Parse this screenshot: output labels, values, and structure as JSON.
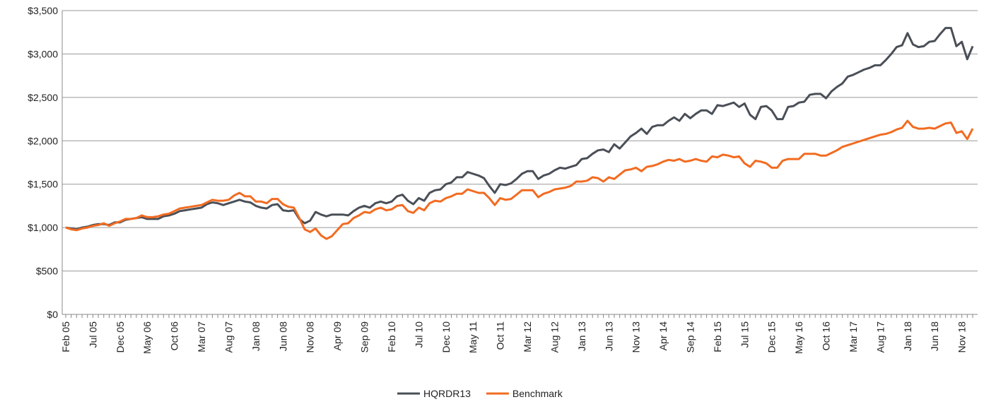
{
  "chart_data": {
    "type": "line",
    "categories": [
      "Feb 05",
      null,
      null,
      null,
      null,
      "Jul 05",
      null,
      null,
      null,
      null,
      "Dec 05",
      null,
      null,
      null,
      null,
      "May 06",
      null,
      null,
      null,
      null,
      "Oct 06",
      null,
      null,
      null,
      null,
      "Mar 07",
      null,
      null,
      null,
      null,
      "Aug 07",
      null,
      null,
      null,
      null,
      "Jan 08",
      null,
      null,
      null,
      null,
      "Jun 08",
      null,
      null,
      null,
      null,
      "Nov 08",
      null,
      null,
      null,
      null,
      "Apr 09",
      null,
      null,
      null,
      null,
      "Sep 09",
      null,
      null,
      null,
      null,
      "Feb 10",
      null,
      null,
      null,
      null,
      "Jul 10",
      null,
      null,
      null,
      null,
      "Dec 10",
      null,
      null,
      null,
      null,
      "May 11",
      null,
      null,
      null,
      null,
      "Oct 11",
      null,
      null,
      null,
      null,
      "Mar 12",
      null,
      null,
      null,
      null,
      "Aug 12",
      null,
      null,
      null,
      null,
      "Jan 13",
      null,
      null,
      null,
      null,
      "Jun 13",
      null,
      null,
      null,
      null,
      "Nov 13",
      null,
      null,
      null,
      null,
      "Apr 14",
      null,
      null,
      null,
      null,
      "Sep 14",
      null,
      null,
      null,
      null,
      "Feb 15",
      null,
      null,
      null,
      null,
      "Jul 15",
      null,
      null,
      null,
      null,
      "Dec 15",
      null,
      null,
      null,
      null,
      "May 16",
      null,
      null,
      null,
      null,
      "Oct 16",
      null,
      null,
      null,
      null,
      "Mar 17",
      null,
      null,
      null,
      null,
      "Aug 17",
      null,
      null,
      null,
      null,
      "Jan 18",
      null,
      null,
      null,
      null,
      "Jun 18",
      null,
      null,
      null,
      null,
      "Nov 18",
      null,
      null
    ],
    "series": [
      {
        "name": "HQRDR13",
        "color": "#4a4f57",
        "values": [
          1000,
          990,
          980,
          1000,
          1010,
          1030,
          1040,
          1040,
          1030,
          1060,
          1060,
          1090,
          1100,
          1110,
          1120,
          1100,
          1100,
          1100,
          1130,
          1140,
          1160,
          1190,
          1200,
          1210,
          1220,
          1230,
          1270,
          1290,
          1280,
          1260,
          1280,
          1300,
          1320,
          1300,
          1290,
          1250,
          1230,
          1220,
          1260,
          1270,
          1200,
          1190,
          1200,
          1100,
          1050,
          1080,
          1180,
          1150,
          1130,
          1150,
          1150,
          1150,
          1140,
          1190,
          1230,
          1250,
          1230,
          1280,
          1300,
          1280,
          1300,
          1360,
          1380,
          1310,
          1270,
          1340,
          1310,
          1400,
          1430,
          1440,
          1500,
          1520,
          1580,
          1580,
          1640,
          1620,
          1600,
          1570,
          1480,
          1400,
          1500,
          1490,
          1510,
          1560,
          1620,
          1650,
          1650,
          1560,
          1600,
          1620,
          1660,
          1690,
          1680,
          1700,
          1720,
          1790,
          1800,
          1850,
          1890,
          1900,
          1870,
          1960,
          1910,
          1980,
          2050,
          2090,
          2140,
          2080,
          2160,
          2180,
          2180,
          2230,
          2270,
          2230,
          2310,
          2260,
          2310,
          2350,
          2350,
          2310,
          2410,
          2400,
          2420,
          2440,
          2390,
          2430,
          2300,
          2250,
          2390,
          2400,
          2350,
          2250,
          2250,
          2390,
          2400,
          2440,
          2450,
          2530,
          2540,
          2540,
          2490,
          2570,
          2620,
          2660,
          2740,
          2760,
          2790,
          2820,
          2840,
          2870,
          2870,
          2930,
          3000,
          3080,
          3100,
          3240,
          3110,
          3080,
          3090,
          3140,
          3150,
          3230,
          3300,
          3300,
          3090,
          3140,
          2940,
          3090
        ]
      },
      {
        "name": "Benchmark",
        "color": "#f26b21",
        "values": [
          1000,
          980,
          970,
          990,
          1000,
          1020,
          1030,
          1050,
          1020,
          1050,
          1070,
          1100,
          1100,
          1110,
          1140,
          1120,
          1120,
          1130,
          1150,
          1160,
          1190,
          1220,
          1230,
          1240,
          1250,
          1260,
          1290,
          1320,
          1310,
          1310,
          1320,
          1370,
          1400,
          1360,
          1360,
          1300,
          1300,
          1280,
          1330,
          1330,
          1270,
          1240,
          1230,
          1110,
          980,
          950,
          990,
          910,
          870,
          900,
          970,
          1040,
          1050,
          1110,
          1140,
          1180,
          1170,
          1210,
          1230,
          1200,
          1210,
          1250,
          1260,
          1190,
          1170,
          1230,
          1200,
          1280,
          1310,
          1300,
          1340,
          1360,
          1390,
          1390,
          1440,
          1420,
          1400,
          1400,
          1340,
          1260,
          1340,
          1320,
          1330,
          1380,
          1430,
          1430,
          1430,
          1350,
          1390,
          1410,
          1440,
          1450,
          1460,
          1480,
          1530,
          1530,
          1540,
          1580,
          1570,
          1530,
          1580,
          1560,
          1610,
          1660,
          1670,
          1690,
          1650,
          1700,
          1710,
          1730,
          1760,
          1780,
          1770,
          1790,
          1760,
          1770,
          1790,
          1770,
          1760,
          1820,
          1810,
          1840,
          1830,
          1810,
          1820,
          1740,
          1700,
          1770,
          1760,
          1740,
          1690,
          1690,
          1770,
          1790,
          1790,
          1790,
          1850,
          1850,
          1850,
          1830,
          1830,
          1860,
          1890,
          1930,
          1950,
          1970,
          1990,
          2010,
          2030,
          2050,
          2070,
          2080,
          2100,
          2130,
          2150,
          2230,
          2160,
          2140,
          2140,
          2150,
          2140,
          2170,
          2200,
          2210,
          2090,
          2110,
          2020,
          2140
        ]
      }
    ],
    "ylim": [
      0,
      3500
    ],
    "yticks": [
      {
        "value": 0,
        "label": "$0"
      },
      {
        "value": 500,
        "label": "$500"
      },
      {
        "value": 1000,
        "label": "$1,000"
      },
      {
        "value": 1500,
        "label": "$1,500"
      },
      {
        "value": 2000,
        "label": "$2,000"
      },
      {
        "value": 2500,
        "label": "$2,500"
      },
      {
        "value": 3000,
        "label": "$3,000"
      },
      {
        "value": 3500,
        "label": "$3,500"
      }
    ],
    "grid": true
  }
}
